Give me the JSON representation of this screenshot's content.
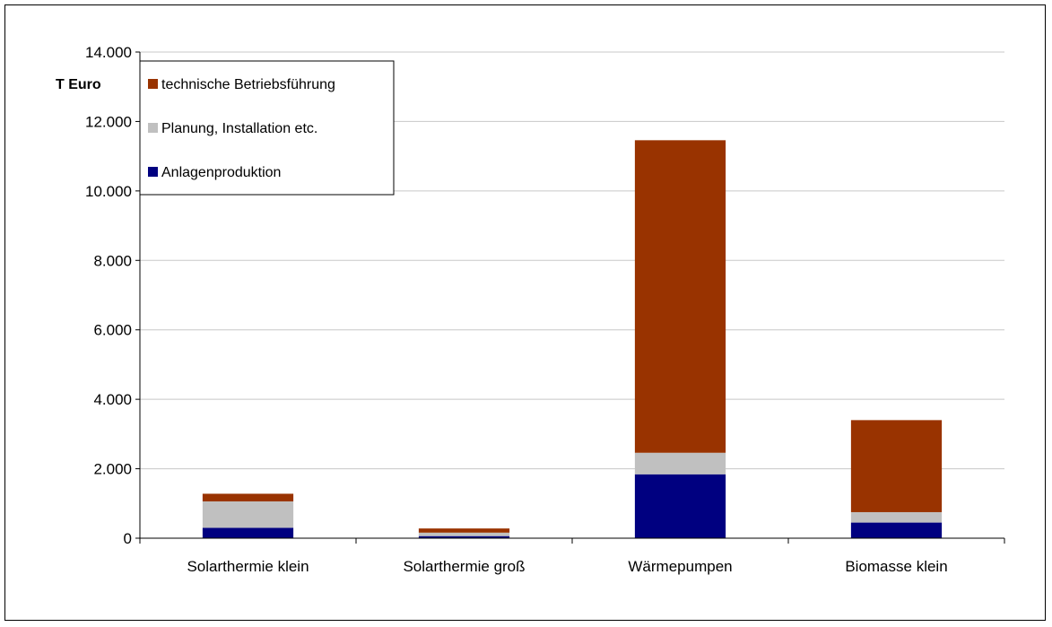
{
  "chart_data": {
    "type": "bar",
    "stacked": true,
    "ylabel": "T Euro",
    "ylim": [
      0,
      14000
    ],
    "yticks": [
      0,
      2000,
      4000,
      6000,
      8000,
      10000,
      12000,
      14000
    ],
    "ytick_labels": [
      "0",
      "2.000",
      "4.000",
      "6.000",
      "8.000",
      "10.000",
      "12.000",
      "14.000"
    ],
    "grid": true,
    "legend_position": "top-left",
    "categories": [
      "Solarthermie klein",
      "Solarthermie groß",
      "Wärmepumpen",
      "Biomasse klein"
    ],
    "series": [
      {
        "name": "Anlagenproduktion",
        "color": "#000080",
        "values": [
          300,
          60,
          1840,
          450
        ]
      },
      {
        "name": "Planung, Installation etc.",
        "color": "#C0C0C0",
        "values": [
          760,
          100,
          620,
          300
        ]
      },
      {
        "name": "technische Betriebsführung",
        "color": "#993300",
        "values": [
          220,
          120,
          9000,
          2650
        ]
      }
    ],
    "legend_order": [
      2,
      1,
      0
    ]
  }
}
